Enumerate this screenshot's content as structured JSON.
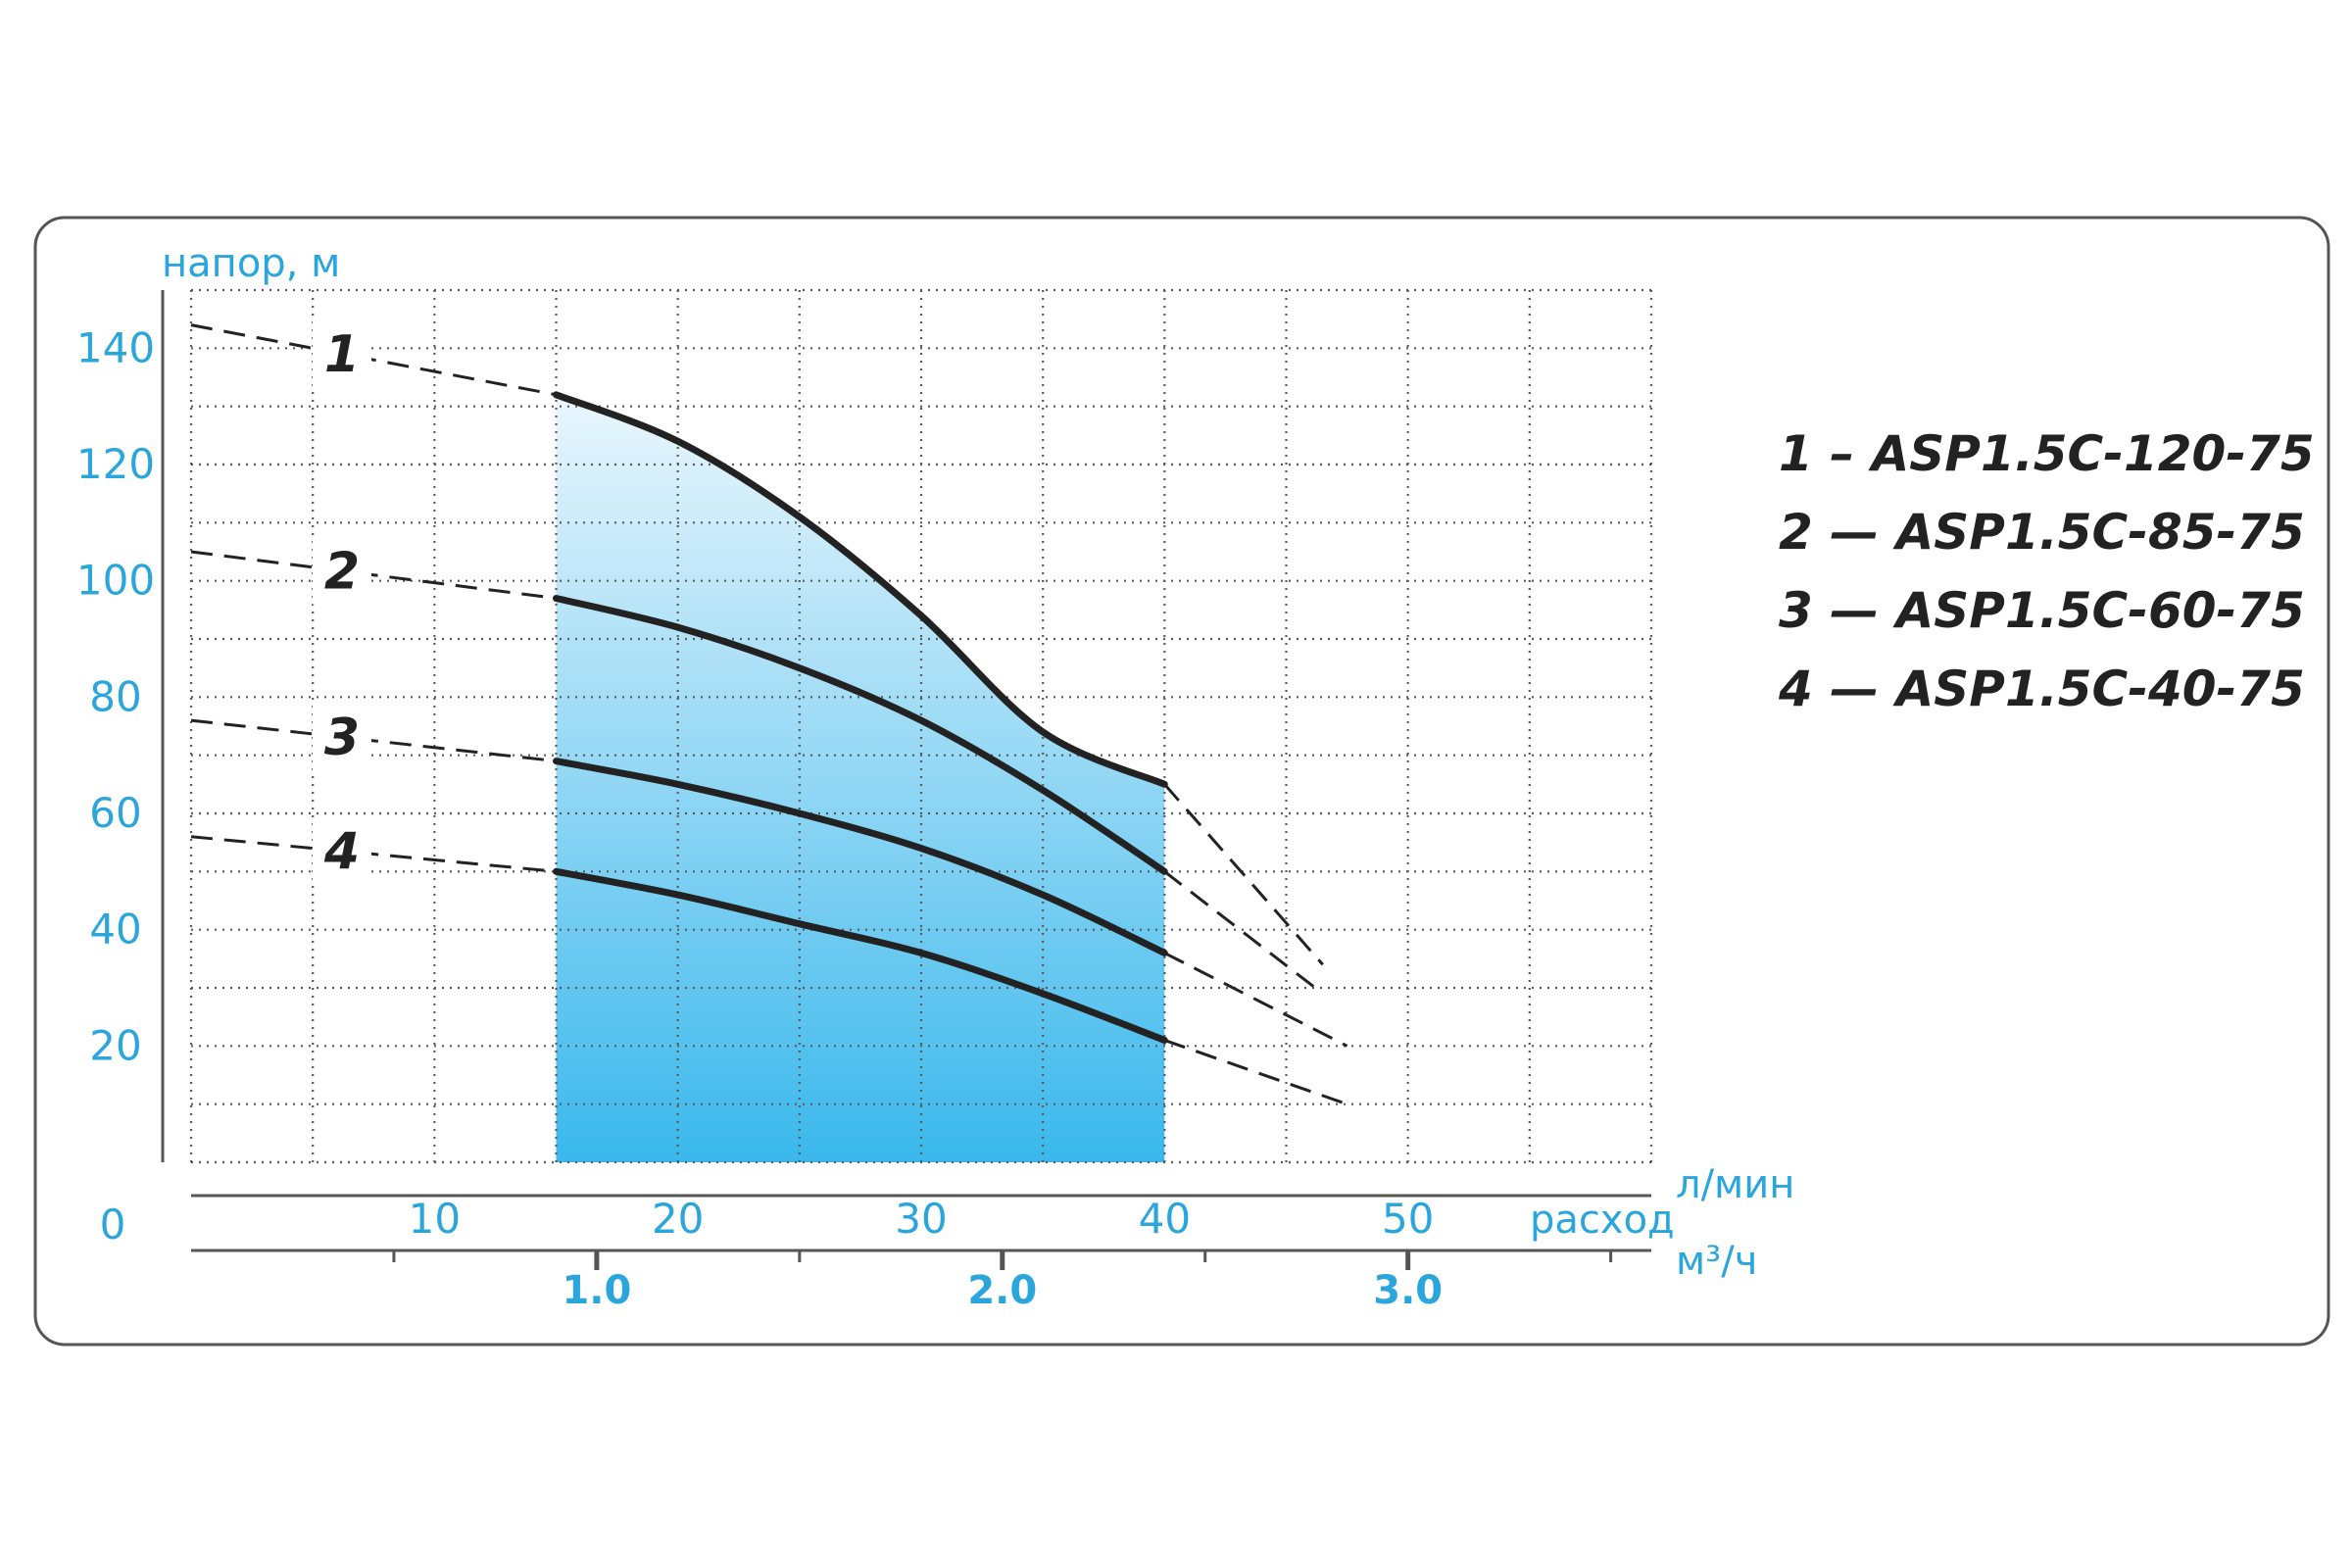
{
  "chart_data": {
    "type": "line",
    "ylabel": "напор, м",
    "xlabel_primary": "расход",
    "xunit_primary": "л/мин",
    "xunit_secondary": "м³/ч",
    "origin_label": "0",
    "xlim": [
      0,
      60
    ],
    "ylim": [
      0,
      150
    ],
    "y_ticks": [
      20,
      40,
      60,
      80,
      100,
      120,
      140
    ],
    "x_ticks": [
      10,
      20,
      30,
      40,
      50
    ],
    "x2_ticks": [
      1.0,
      2.0,
      3.0
    ],
    "x2_tick_labels": [
      "1.0",
      "2.0",
      "3.0"
    ],
    "x2_minor_ticks": [
      0.5,
      1.5,
      2.5,
      3.5
    ],
    "grid": true,
    "working_range": [
      15,
      40
    ],
    "series": [
      {
        "name": "1",
        "solid": {
          "x": [
            15,
            20,
            25,
            30,
            35,
            40
          ],
          "y": [
            132,
            124,
            111,
            94,
            74,
            65
          ]
        },
        "dashed_left": {
          "x": [
            0,
            15
          ],
          "y": [
            144,
            132
          ]
        },
        "dashed_right": {
          "x": [
            40,
            46.5
          ],
          "y": [
            65,
            34
          ]
        }
      },
      {
        "name": "2",
        "solid": {
          "x": [
            15,
            20,
            25,
            30,
            35,
            40
          ],
          "y": [
            97,
            92,
            85,
            76,
            64,
            50
          ]
        },
        "dashed_left": {
          "x": [
            0,
            15
          ],
          "y": [
            105,
            97
          ]
        },
        "dashed_right": {
          "x": [
            40,
            46.5
          ],
          "y": [
            50,
            29
          ]
        }
      },
      {
        "name": "3",
        "solid": {
          "x": [
            15,
            20,
            25,
            30,
            35,
            40
          ],
          "y": [
            69,
            65,
            60,
            54,
            46,
            36
          ]
        },
        "dashed_left": {
          "x": [
            0,
            15
          ],
          "y": [
            76,
            69
          ]
        },
        "dashed_right": {
          "x": [
            40,
            47.5
          ],
          "y": [
            36,
            20
          ]
        }
      },
      {
        "name": "4",
        "solid": {
          "x": [
            15,
            20,
            25,
            30,
            35,
            40
          ],
          "y": [
            50,
            46,
            41,
            36,
            29,
            21
          ]
        },
        "dashed_left": {
          "x": [
            0,
            15
          ],
          "y": [
            56,
            50
          ]
        },
        "dashed_right": {
          "x": [
            40,
            47.5
          ],
          "y": [
            21,
            10
          ]
        }
      }
    ],
    "legend": [
      "1 – ASP1.5C-120-75",
      "2 — ASP1.5C-85-75",
      "3 — ASP1.5C-60-75",
      "4 — ASP1.5C-40-75"
    ],
    "legend_position": "right"
  },
  "colors": {
    "axis_label": "#2aa6dc",
    "curve": "#222222",
    "grid": "#5a5a5a",
    "fill_top": "#eaf6fd",
    "fill_bottom": "#3ab8ec",
    "frame": "#555555"
  }
}
